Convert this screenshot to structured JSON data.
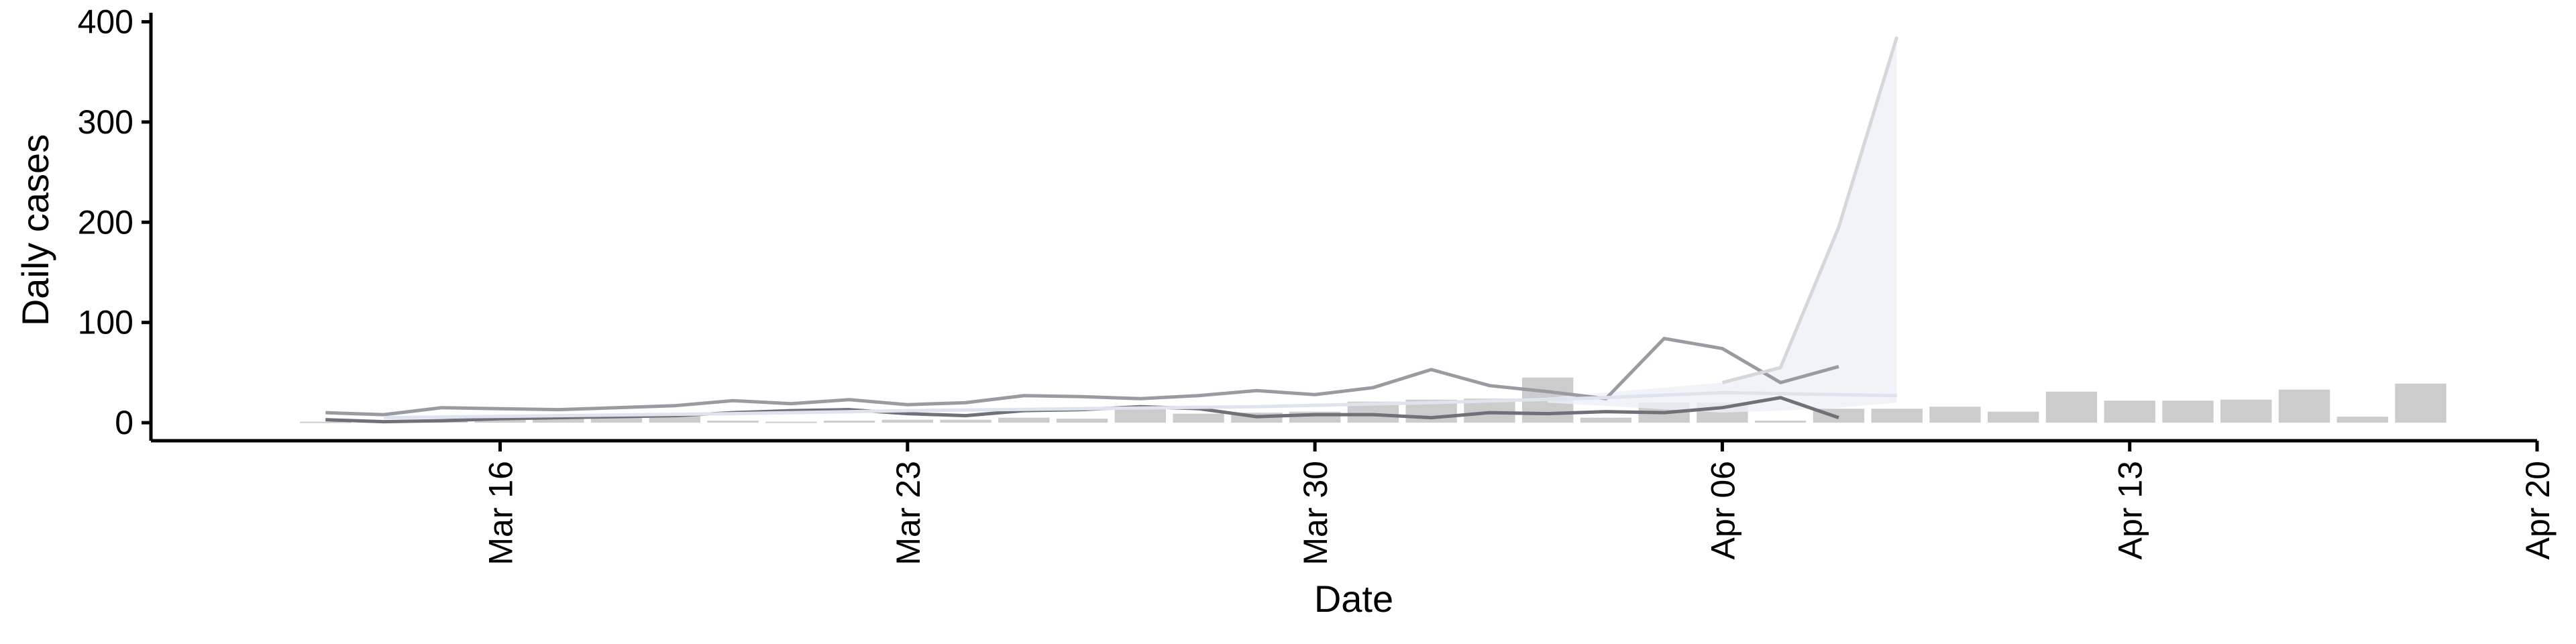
{
  "chart_data": {
    "type": "bar",
    "title": "",
    "xlabel": "Date",
    "ylabel": "Daily cases",
    "x_tick_labels": [
      "Mar 16",
      "Mar 23",
      "Mar 30",
      "Apr 06",
      "Apr 13",
      "Apr 20"
    ],
    "x_ticks": [
      "2020-03-16",
      "2020-03-23",
      "2020-03-30",
      "2020-04-06",
      "2020-04-13",
      "2020-04-20"
    ],
    "xlim": [
      "2020-03-10",
      "2020-04-20"
    ],
    "y_ticks": [
      0,
      100,
      200,
      300,
      400
    ],
    "ylim": [
      -18,
      405
    ],
    "grid": false,
    "bar_color": "#cccccc",
    "bars": {
      "dates": [
        "2020-03-13",
        "2020-03-14",
        "2020-03-15",
        "2020-03-16",
        "2020-03-17",
        "2020-03-18",
        "2020-03-19",
        "2020-03-20",
        "2020-03-21",
        "2020-03-22",
        "2020-03-23",
        "2020-03-24",
        "2020-03-25",
        "2020-03-26",
        "2020-03-27",
        "2020-03-28",
        "2020-03-29",
        "2020-03-30",
        "2020-03-31",
        "2020-04-01",
        "2020-04-02",
        "2020-04-03",
        "2020-04-04",
        "2020-04-05",
        "2020-04-06",
        "2020-04-07",
        "2020-04-08",
        "2020-04-09",
        "2020-04-10",
        "2020-04-11",
        "2020-04-12",
        "2020-04-13",
        "2020-04-14",
        "2020-04-15",
        "2020-04-16",
        "2020-04-17",
        "2020-04-18"
      ],
      "values": [
        1,
        2,
        3,
        4,
        5,
        6,
        7,
        2,
        1,
        2,
        3,
        3,
        5,
        4,
        14,
        9,
        10,
        11,
        21,
        23,
        24,
        45,
        5,
        20,
        20,
        2,
        14,
        14,
        16,
        11,
        31,
        22,
        22,
        23,
        33,
        6,
        39
      ]
    },
    "series": [
      {
        "dates": [
          "2020-03-13",
          "2020-03-14",
          "2020-03-15",
          "2020-03-16",
          "2020-03-17",
          "2020-03-18",
          "2020-03-19",
          "2020-03-20",
          "2020-03-21",
          "2020-03-22",
          "2020-03-23",
          "2020-03-24",
          "2020-03-25",
          "2020-03-26",
          "2020-03-27",
          "2020-03-28",
          "2020-03-29",
          "2020-03-30",
          "2020-03-31",
          "2020-04-01",
          "2020-04-02",
          "2020-04-03",
          "2020-04-04",
          "2020-04-05",
          "2020-04-06",
          "2020-04-07",
          "2020-04-08"
        ],
        "values": [
          10,
          8,
          15,
          14,
          13,
          15,
          17,
          22,
          19,
          23,
          18,
          20,
          27,
          26,
          24,
          27,
          32,
          28,
          35,
          53,
          37,
          31,
          24,
          84,
          74,
          40,
          56
        ],
        "color": "#9a9ba0"
      },
      {
        "dates": [
          "2020-03-13",
          "2020-03-14",
          "2020-03-15",
          "2020-03-16",
          "2020-03-17",
          "2020-03-18",
          "2020-03-19",
          "2020-03-20",
          "2020-03-21",
          "2020-03-22",
          "2020-03-23",
          "2020-03-24",
          "2020-03-25",
          "2020-03-26",
          "2020-03-27",
          "2020-03-28",
          "2020-03-29",
          "2020-03-30",
          "2020-03-31",
          "2020-04-01",
          "2020-04-02",
          "2020-04-03",
          "2020-04-04",
          "2020-04-05",
          "2020-04-06",
          "2020-04-07",
          "2020-04-08"
        ],
        "values": [
          3,
          1,
          2,
          4,
          5,
          6,
          7,
          10,
          12,
          13,
          9,
          7,
          12,
          13,
          16,
          14,
          6,
          8,
          8,
          5,
          10,
          9,
          11,
          10,
          15,
          25,
          5
        ],
        "color": "#6f7078"
      },
      {
        "dates": [
          "2020-03-14",
          "2020-03-17",
          "2020-03-20",
          "2020-03-23",
          "2020-03-26",
          "2020-03-29",
          "2020-04-01",
          "2020-04-04",
          "2020-04-06",
          "2020-04-08",
          "2020-04-09"
        ],
        "values": [
          5,
          7,
          9,
          12,
          14,
          16,
          20,
          25,
          30,
          28,
          27
        ],
        "color": "#dfe3ee"
      },
      {
        "dates": [
          "2020-04-06",
          "2020-04-07",
          "2020-04-08",
          "2020-04-09"
        ],
        "values": [
          40,
          55,
          195,
          385
        ],
        "color": "#d6d7db"
      }
    ],
    "ribbon": {
      "dates": [
        "2020-04-03",
        "2020-04-06",
        "2020-04-07",
        "2020-04-08",
        "2020-04-09"
      ],
      "upper": [
        25,
        40,
        55,
        195,
        385
      ],
      "lower": [
        20,
        10,
        12,
        15,
        20
      ],
      "color": "#eef0f6"
    }
  }
}
